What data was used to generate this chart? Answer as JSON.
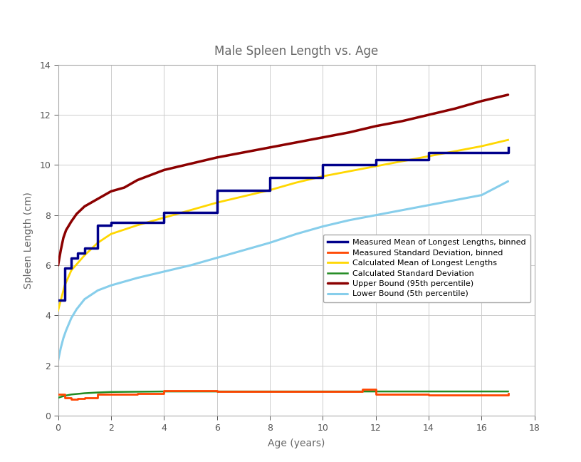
{
  "title": "Male Spleen Length vs. Age",
  "xlabel": "Age (years)",
  "ylabel": "Spleen Length (cm)",
  "xlim": [
    0,
    18
  ],
  "ylim": [
    0,
    14
  ],
  "xticks": [
    0,
    2,
    4,
    6,
    8,
    10,
    12,
    14,
    16,
    18
  ],
  "yticks": [
    0,
    2,
    4,
    6,
    8,
    10,
    12,
    14
  ],
  "measured_mean_x": [
    0.0,
    0.25,
    0.5,
    0.75,
    1.0,
    1.5,
    2.0,
    3.0,
    4.0,
    6.0,
    8.0,
    10.0,
    12.0,
    14.0,
    17.0
  ],
  "measured_mean_y": [
    4.6,
    5.9,
    6.3,
    6.5,
    6.7,
    7.6,
    7.7,
    7.7,
    8.1,
    9.0,
    9.5,
    10.0,
    10.2,
    10.5,
    10.7
  ],
  "measured_sd_x": [
    0.0,
    0.25,
    0.5,
    0.75,
    1.0,
    1.5,
    2.0,
    3.0,
    4.0,
    6.0,
    8.0,
    10.0,
    11.5,
    12.0,
    13.0,
    14.0,
    17.0
  ],
  "measured_sd_y": [
    0.85,
    0.72,
    0.65,
    0.68,
    0.72,
    0.85,
    0.85,
    0.88,
    1.0,
    0.96,
    0.96,
    0.96,
    1.05,
    0.85,
    0.85,
    0.82,
    0.9
  ],
  "calc_mean_x": [
    0.0,
    0.25,
    0.5,
    1.0,
    1.5,
    2.0,
    3.0,
    4.0,
    5.0,
    6.0,
    7.0,
    8.0,
    9.0,
    10.0,
    11.0,
    12.0,
    13.0,
    14.0,
    15.0,
    16.0,
    17.0
  ],
  "calc_mean_y": [
    4.2,
    5.2,
    5.8,
    6.4,
    6.9,
    7.25,
    7.6,
    7.9,
    8.2,
    8.5,
    8.75,
    9.0,
    9.3,
    9.55,
    9.75,
    9.95,
    10.15,
    10.35,
    10.55,
    10.75,
    11.0
  ],
  "calc_sd_x": [
    0.0,
    0.25,
    0.5,
    1.0,
    1.5,
    2.0,
    3.0,
    4.0,
    5.0,
    6.0,
    7.0,
    8.0,
    9.0,
    10.0,
    11.0,
    12.0,
    13.0,
    14.0,
    15.0,
    16.0,
    17.0
  ],
  "calc_sd_y": [
    0.72,
    0.8,
    0.85,
    0.9,
    0.93,
    0.95,
    0.96,
    0.97,
    0.97,
    0.97,
    0.97,
    0.97,
    0.97,
    0.97,
    0.97,
    0.97,
    0.97,
    0.97,
    0.97,
    0.97,
    0.97
  ],
  "upper_bound_x": [
    0.0,
    0.1,
    0.2,
    0.3,
    0.5,
    0.7,
    1.0,
    1.5,
    2.0,
    2.5,
    3.0,
    4.0,
    5.0,
    6.0,
    7.0,
    8.0,
    9.0,
    10.0,
    11.0,
    12.0,
    13.0,
    14.0,
    15.0,
    16.0,
    17.0
  ],
  "upper_bound_y": [
    6.0,
    6.6,
    7.1,
    7.4,
    7.75,
    8.05,
    8.35,
    8.65,
    8.95,
    9.1,
    9.4,
    9.8,
    10.05,
    10.3,
    10.5,
    10.7,
    10.9,
    11.1,
    11.3,
    11.55,
    11.75,
    12.0,
    12.25,
    12.55,
    12.8
  ],
  "lower_bound_x": [
    0.0,
    0.1,
    0.2,
    0.3,
    0.5,
    0.7,
    1.0,
    1.5,
    2.0,
    2.5,
    3.0,
    4.0,
    5.0,
    6.0,
    7.0,
    8.0,
    9.0,
    10.0,
    11.0,
    12.0,
    13.0,
    14.0,
    15.0,
    16.0,
    17.0
  ],
  "lower_bound_y": [
    2.2,
    2.7,
    3.1,
    3.4,
    3.9,
    4.25,
    4.65,
    5.0,
    5.2,
    5.35,
    5.5,
    5.75,
    6.0,
    6.3,
    6.6,
    6.9,
    7.25,
    7.55,
    7.8,
    8.0,
    8.2,
    8.4,
    8.6,
    8.8,
    9.35
  ],
  "color_measured_mean": "#00008B",
  "color_measured_sd": "#FF4500",
  "color_calc_mean": "#FFD700",
  "color_calc_sd": "#228B22",
  "color_upper": "#8B0000",
  "color_lower": "#87CEEB",
  "background_color": "#FFFFFF"
}
